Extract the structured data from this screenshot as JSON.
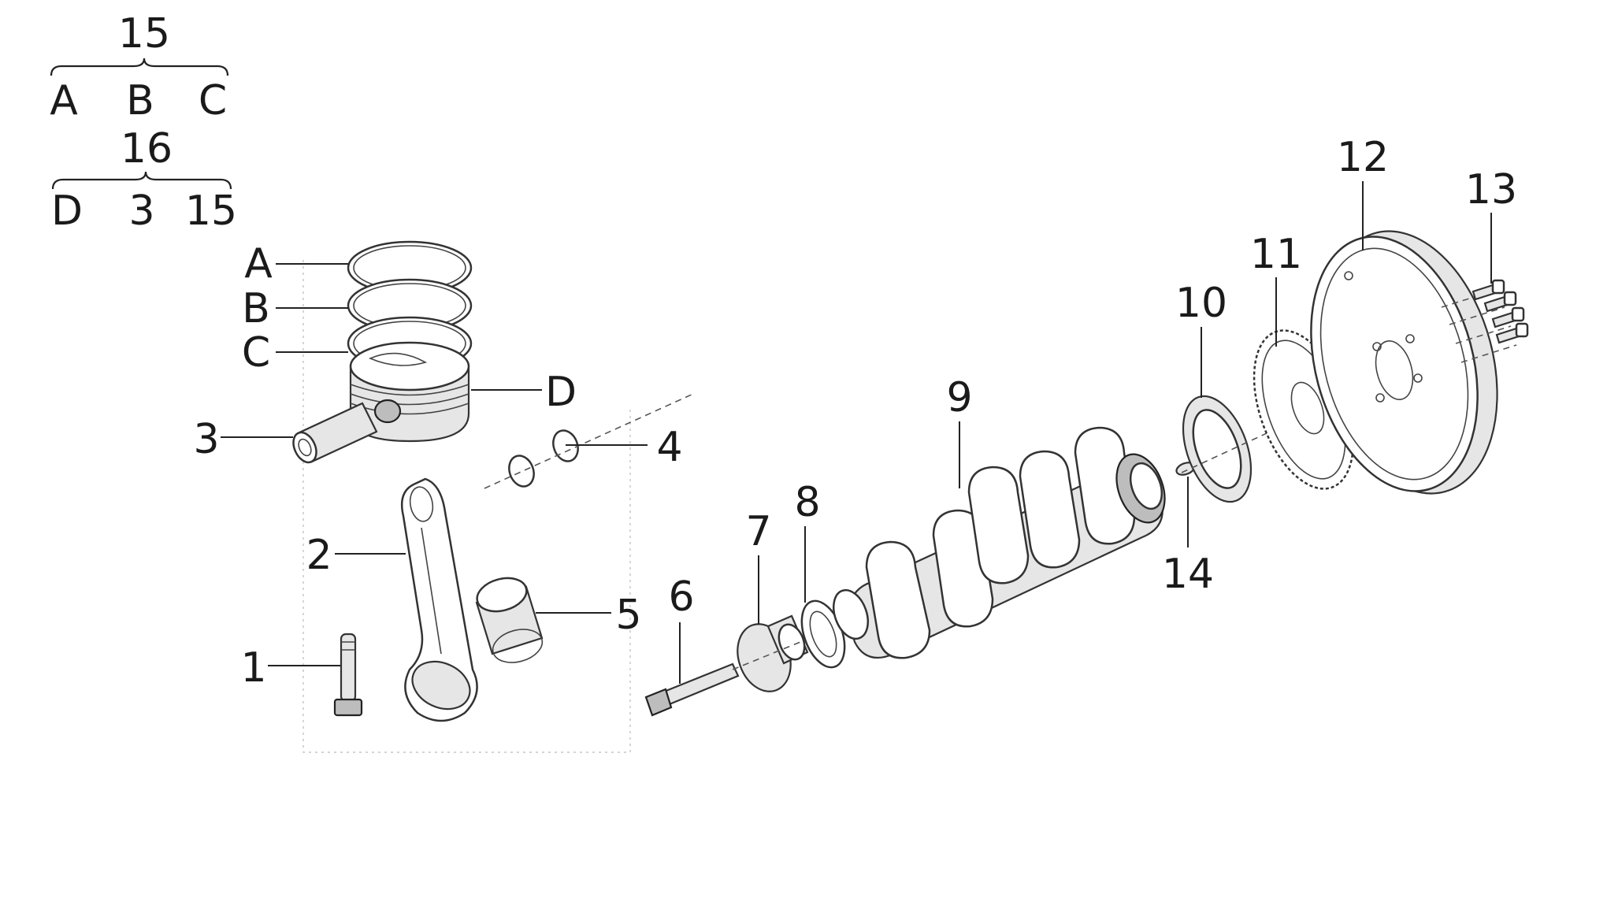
{
  "legend": {
    "group_15": {
      "number": "15",
      "members": [
        "A",
        "B",
        "C"
      ]
    },
    "group_16": {
      "number": "16",
      "members": [
        "D",
        "3",
        "15"
      ]
    }
  },
  "callouts": {
    "ring_a": "A",
    "ring_b": "B",
    "ring_c": "C",
    "piston": "D",
    "piston_pin": "3",
    "circlip": "4",
    "connecting_rod": "2",
    "rod_bolt": "1",
    "rod_bushing": "5",
    "pulley_bolt": "6",
    "hub": "7",
    "front_seal": "8",
    "crankshaft": "9",
    "rear_seal": "10",
    "reluctor_ring": "11",
    "flywheel": "12",
    "flywheel_bolts": "13",
    "dowel_pin": "14"
  }
}
